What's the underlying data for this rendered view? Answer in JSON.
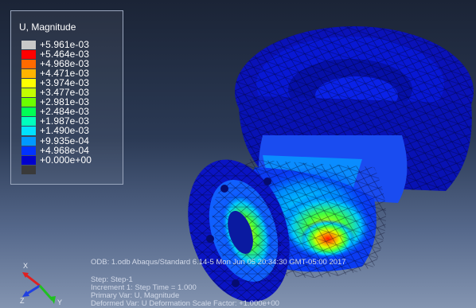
{
  "legend": {
    "title": "U, Magnitude",
    "levels": [
      {
        "value": "+5.961e-03",
        "color": "#c8c8c8"
      },
      {
        "value": "+5.464e-03",
        "color": "#ff0000"
      },
      {
        "value": "+4.968e-03",
        "color": "#ff6a00"
      },
      {
        "value": "+4.471e-03",
        "color": "#ffb400"
      },
      {
        "value": "+3.974e-03",
        "color": "#ffff00"
      },
      {
        "value": "+3.477e-03",
        "color": "#c3ff00"
      },
      {
        "value": "+2.981e-03",
        "color": "#6cff00"
      },
      {
        "value": "+2.484e-03",
        "color": "#00ff55"
      },
      {
        "value": "+1.987e-03",
        "color": "#00ffbe"
      },
      {
        "value": "+1.490e-03",
        "color": "#00e1ff"
      },
      {
        "value": "+9.935e-04",
        "color": "#0099ff"
      },
      {
        "value": "+4.968e-04",
        "color": "#0033ff"
      },
      {
        "value": "+0.000e+00",
        "color": "#0000cd"
      }
    ],
    "bottom_swatch_color": "#3a3a3a"
  },
  "info": {
    "odb_line": "ODB: 1.odb    Abaqus/Standard 6.14-5    Mon Jun 05 20:34:30 GMT-05:00 2017",
    "step_line": "Step: Step-1",
    "increment_line": "Increment      1: Step Time =     1.000",
    "primary_var_line": "Primary Var: U, Magnitude",
    "deformed_var_line": "Deformed Var: U   Deformation Scale Factor: +1.000e+00"
  },
  "triad": {
    "x_label": "X",
    "y_label": "Y",
    "z_label": "Z",
    "x_color": "#e02020",
    "y_color": "#20c020",
    "z_color": "#2040e0"
  }
}
